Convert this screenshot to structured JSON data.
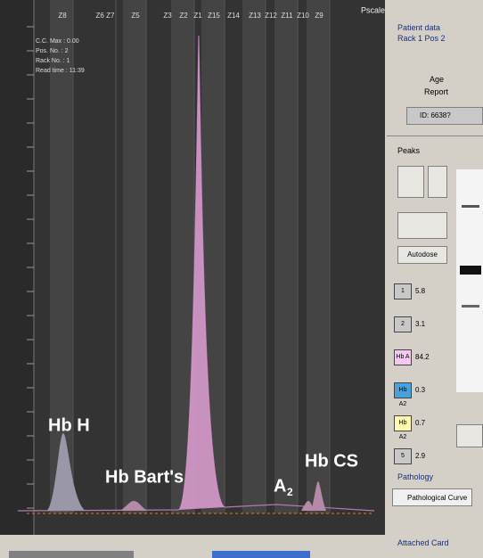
{
  "chart_view": {
    "zones": [
      "Z8",
      "Z6 Z7",
      "Z5",
      "Z3",
      "Z2",
      "Z1",
      "Z15",
      "Z14",
      "Z13",
      "Z12",
      "Z11",
      "Z10",
      "Z9"
    ],
    "pscale": "Pscale",
    "info": [
      "C.C. Max : 0.00",
      "Pos. No. : 2",
      "Rack No. : 1",
      "Read time : 11:39"
    ],
    "annotations": {
      "hb_h": "Hb H",
      "hb_barts": "Hb Bart's",
      "a2": "A",
      "a2_sub": "2",
      "hb_cs": "Hb CS"
    }
  },
  "side_panel": {
    "patient_title": "Patient data",
    "rack": "Rack 1 Pos 2",
    "age": "Age",
    "report": "Report",
    "id": "ID: 6638?",
    "peaks": "Peaks",
    "autodose": "Autodose",
    "fractions": [
      {
        "name": "1",
        "value": "5.8"
      },
      {
        "name": "2",
        "value": "3.1"
      },
      {
        "name": "Hb A",
        "value": "84.2"
      },
      {
        "name": "Hb A2",
        "value": "0.3"
      },
      {
        "name": "Hb A2",
        "value": "0.7"
      },
      {
        "name": "5",
        "value": "2.9"
      }
    ],
    "pathology": "Pathology",
    "curve": "Pathological Curve",
    "attached": "Attached Card"
  }
}
